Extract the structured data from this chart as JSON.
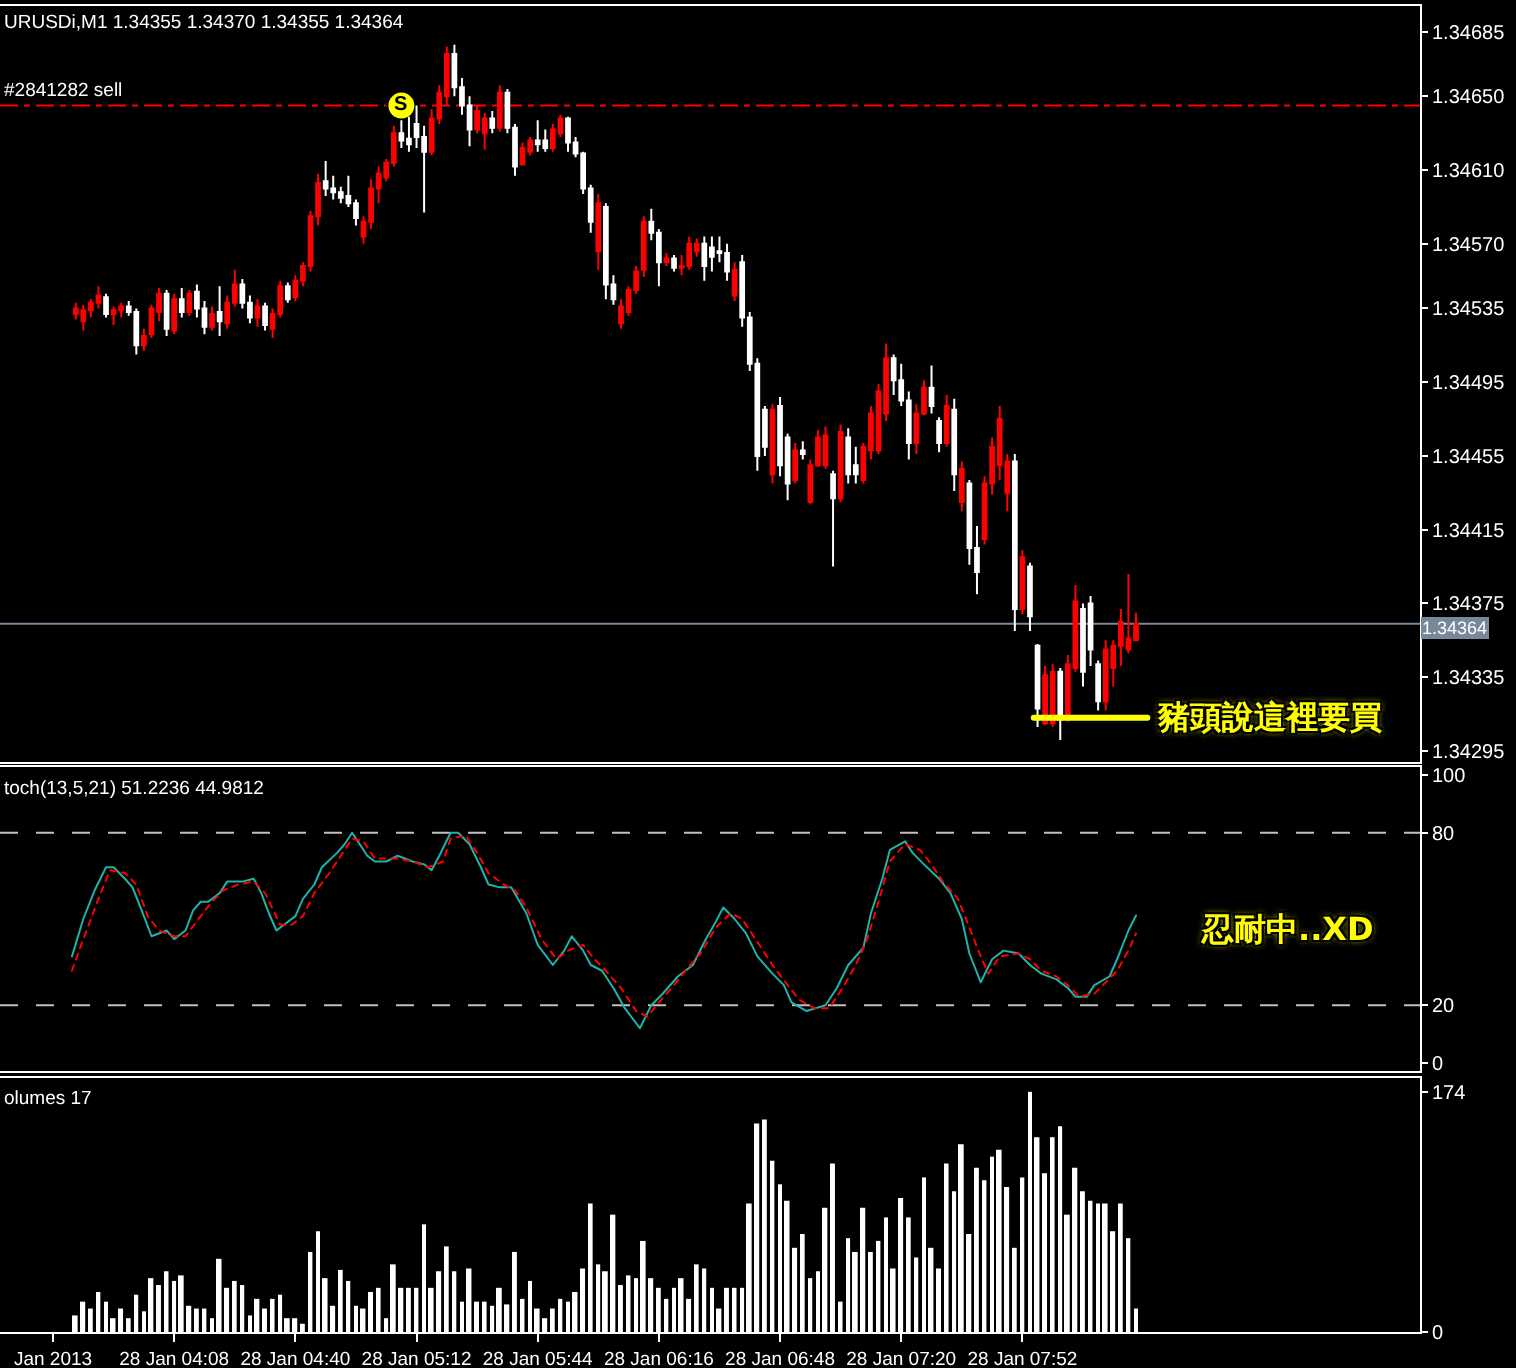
{
  "chart_data": [
    {
      "type": "candlestick",
      "title": "URUSDi,M1 1.34355 1.34370 1.34355 1.34364",
      "x": [
        "2013-01-28T03:42",
        "2013-01-28T03:44",
        "2013-01-28T03:46",
        "2013-01-28T03:48",
        "2013-01-28T03:50",
        "2013-01-28T03:52",
        "2013-01-28T03:54",
        "2013-01-28T03:56",
        "2013-01-28T03:58",
        "2013-01-28T04:00",
        "2013-01-28T04:02",
        "2013-01-28T04:04",
        "2013-01-28T04:06",
        "2013-01-28T04:08",
        "2013-01-28T04:10",
        "2013-01-28T04:12",
        "2013-01-28T04:14",
        "2013-01-28T04:16",
        "2013-01-28T04:18",
        "2013-01-28T04:20",
        "2013-01-28T04:22",
        "2013-01-28T04:24",
        "2013-01-28T04:26",
        "2013-01-28T04:28",
        "2013-01-28T04:30",
        "2013-01-28T04:32",
        "2013-01-28T04:34",
        "2013-01-28T04:36",
        "2013-01-28T04:38",
        "2013-01-28T04:40",
        "2013-01-28T04:42",
        "2013-01-28T04:44",
        "2013-01-28T04:46",
        "2013-01-28T04:48",
        "2013-01-28T04:50",
        "2013-01-28T04:52",
        "2013-01-28T04:54",
        "2013-01-28T04:56",
        "2013-01-28T04:58",
        "2013-01-28T05:00",
        "2013-01-28T05:02",
        "2013-01-28T05:04",
        "2013-01-28T05:06",
        "2013-01-28T05:08",
        "2013-01-28T05:10",
        "2013-01-28T05:12",
        "2013-01-28T05:14",
        "2013-01-28T05:16",
        "2013-01-28T05:18",
        "2013-01-28T05:20",
        "2013-01-28T05:22",
        "2013-01-28T05:24",
        "2013-01-28T05:26",
        "2013-01-28T05:28",
        "2013-01-28T05:30",
        "2013-01-28T05:32",
        "2013-01-28T05:34",
        "2013-01-28T05:36",
        "2013-01-28T05:38",
        "2013-01-28T05:40",
        "2013-01-28T05:42",
        "2013-01-28T05:44",
        "2013-01-28T05:46",
        "2013-01-28T05:48",
        "2013-01-28T05:50",
        "2013-01-28T05:52",
        "2013-01-28T05:54",
        "2013-01-28T05:56",
        "2013-01-28T05:58",
        "2013-01-28T06:00",
        "2013-01-28T06:02",
        "2013-01-28T06:04",
        "2013-01-28T06:06",
        "2013-01-28T06:08",
        "2013-01-28T06:10",
        "2013-01-28T06:12",
        "2013-01-28T06:14",
        "2013-01-28T06:16",
        "2013-01-28T06:18",
        "2013-01-28T06:20",
        "2013-01-28T06:22",
        "2013-01-28T06:24",
        "2013-01-28T06:26",
        "2013-01-28T06:28",
        "2013-01-28T06:30",
        "2013-01-28T06:32",
        "2013-01-28T06:34",
        "2013-01-28T06:36",
        "2013-01-28T06:38",
        "2013-01-28T06:40",
        "2013-01-28T06:42",
        "2013-01-28T06:44",
        "2013-01-28T06:46",
        "2013-01-28T06:48",
        "2013-01-28T06:50",
        "2013-01-28T06:52",
        "2013-01-28T06:54",
        "2013-01-28T06:56",
        "2013-01-28T06:58",
        "2013-01-28T07:00",
        "2013-01-28T07:02",
        "2013-01-28T07:04",
        "2013-01-28T07:06",
        "2013-01-28T07:08",
        "2013-01-28T07:10",
        "2013-01-28T07:12",
        "2013-01-28T07:14",
        "2013-01-28T07:16",
        "2013-01-28T07:18",
        "2013-01-28T07:20",
        "2013-01-28T07:22",
        "2013-01-28T07:24",
        "2013-01-28T07:26",
        "2013-01-28T07:28",
        "2013-01-28T07:30",
        "2013-01-28T07:32",
        "2013-01-28T07:34",
        "2013-01-28T07:36",
        "2013-01-28T07:38",
        "2013-01-28T07:40",
        "2013-01-28T07:42",
        "2013-01-28T07:44",
        "2013-01-28T07:46",
        "2013-01-28T07:48",
        "2013-01-28T07:50",
        "2013-01-28T07:52",
        "2013-01-28T07:54",
        "2013-01-28T07:56",
        "2013-01-28T07:58",
        "2013-01-28T08:00",
        "2013-01-28T08:02",
        "2013-01-28T08:04",
        "2013-01-28T08:06",
        "2013-01-28T08:08",
        "2013-01-28T08:10",
        "2013-01-28T08:12",
        "2013-01-28T08:14",
        "2013-01-28T08:16",
        "2013-01-28T08:18",
        "2013-01-28T08:20",
        "2013-01-28T08:22"
      ],
      "ohlc": [
        [
          1.34532,
          1.34538,
          1.34529,
          1.34535
        ],
        [
          1.34528,
          1.34537,
          1.34523,
          1.34534
        ],
        [
          1.34534,
          1.3454,
          1.3453,
          1.34538
        ],
        [
          1.34538,
          1.34547,
          1.34535,
          1.34542
        ],
        [
          1.34541,
          1.34543,
          1.3453,
          1.34532
        ],
        [
          1.34532,
          1.34536,
          1.34526,
          1.34534
        ],
        [
          1.34534,
          1.34538,
          1.3453,
          1.34536
        ],
        [
          1.34536,
          1.34539,
          1.34531,
          1.34533
        ],
        [
          1.34533,
          1.34535,
          1.3451,
          1.34515
        ],
        [
          1.34515,
          1.34524,
          1.34512,
          1.3452
        ],
        [
          1.34521,
          1.34537,
          1.34519,
          1.34535
        ],
        [
          1.34533,
          1.34546,
          1.34528,
          1.34543
        ],
        [
          1.34543,
          1.34545,
          1.3452,
          1.34524
        ],
        [
          1.34523,
          1.34543,
          1.34521,
          1.3454
        ],
        [
          1.3454,
          1.34546,
          1.3453,
          1.34533
        ],
        [
          1.34533,
          1.34545,
          1.34531,
          1.34543
        ],
        [
          1.34544,
          1.34548,
          1.3453,
          1.34535
        ],
        [
          1.34535,
          1.34539,
          1.34521,
          1.34525
        ],
        [
          1.34525,
          1.34536,
          1.34523,
          1.34532
        ],
        [
          1.34533,
          1.34547,
          1.3452,
          1.34528
        ],
        [
          1.34527,
          1.34542,
          1.34524,
          1.34538
        ],
        [
          1.34538,
          1.34556,
          1.34536,
          1.34548
        ],
        [
          1.34548,
          1.34551,
          1.34535,
          1.34538
        ],
        [
          1.34538,
          1.34542,
          1.34527,
          1.3453
        ],
        [
          1.3453,
          1.3454,
          1.34525,
          1.34536
        ],
        [
          1.34536,
          1.34538,
          1.34523,
          1.34526
        ],
        [
          1.34524,
          1.34535,
          1.34519,
          1.34532
        ],
        [
          1.34532,
          1.3455,
          1.3453,
          1.34547
        ],
        [
          1.34547,
          1.34549,
          1.34538,
          1.3454
        ],
        [
          1.34541,
          1.34553,
          1.34539,
          1.3455
        ],
        [
          1.3455,
          1.3456,
          1.34547,
          1.34558
        ],
        [
          1.34558,
          1.34588,
          1.34555,
          1.34585
        ],
        [
          1.34585,
          1.34608,
          1.3458,
          1.34603
        ],
        [
          1.34604,
          1.34615,
          1.34596,
          1.346
        ],
        [
          1.346,
          1.34607,
          1.34594,
          1.34598
        ],
        [
          1.34598,
          1.34601,
          1.34592,
          1.34595
        ],
        [
          1.34596,
          1.34607,
          1.3459,
          1.34592
        ],
        [
          1.34592,
          1.34594,
          1.3458,
          1.34584
        ],
        [
          1.34574,
          1.34585,
          1.3457,
          1.34582
        ],
        [
          1.34582,
          1.34605,
          1.34578,
          1.346
        ],
        [
          1.346,
          1.34612,
          1.34592,
          1.34608
        ],
        [
          1.34606,
          1.34616,
          1.34604,
          1.34614
        ],
        [
          1.34614,
          1.34634,
          1.34612,
          1.3463
        ],
        [
          1.3463,
          1.34637,
          1.34622,
          1.34626
        ],
        [
          1.34627,
          1.34639,
          1.3462,
          1.34624
        ],
        [
          1.34635,
          1.34645,
          1.34622,
          1.34628
        ],
        [
          1.34628,
          1.34634,
          1.34587,
          1.3462
        ],
        [
          1.3462,
          1.34643,
          1.34618,
          1.34638
        ],
        [
          1.34638,
          1.34656,
          1.34635,
          1.34652
        ],
        [
          1.3465,
          1.34677,
          1.34645,
          1.34673
        ],
        [
          1.34673,
          1.34678,
          1.3465,
          1.34655
        ],
        [
          1.34655,
          1.3466,
          1.3464,
          1.34645
        ],
        [
          1.34645,
          1.3465,
          1.34623,
          1.34632
        ],
        [
          1.34632,
          1.34645,
          1.3463,
          1.34642
        ],
        [
          1.3463,
          1.34641,
          1.34621,
          1.34638
        ],
        [
          1.34638,
          1.34642,
          1.3463,
          1.34633
        ],
        [
          1.34633,
          1.34656,
          1.34631,
          1.34652
        ],
        [
          1.34652,
          1.34654,
          1.3463,
          1.34633
        ],
        [
          1.34633,
          1.34635,
          1.34607,
          1.34612
        ],
        [
          1.34613,
          1.34625,
          1.34613,
          1.34622
        ],
        [
          1.3462,
          1.34628,
          1.34618,
          1.34626
        ],
        [
          1.34626,
          1.34637,
          1.3462,
          1.34624
        ],
        [
          1.34626,
          1.34632,
          1.3462,
          1.34622
        ],
        [
          1.34622,
          1.34635,
          1.3462,
          1.34632
        ],
        [
          1.3463,
          1.3464,
          1.34628,
          1.34638
        ],
        [
          1.34638,
          1.34639,
          1.3462,
          1.34625
        ],
        [
          1.34625,
          1.34628,
          1.34617,
          1.34619
        ],
        [
          1.34619,
          1.3462,
          1.34597,
          1.346
        ],
        [
          1.346,
          1.34602,
          1.34576,
          1.34582
        ],
        [
          1.34566,
          1.34597,
          1.34556,
          1.34592
        ],
        [
          1.3459,
          1.34592,
          1.3454,
          1.34548
        ],
        [
          1.34548,
          1.34553,
          1.34537,
          1.3454
        ],
        [
          1.34527,
          1.3454,
          1.34524,
          1.34536
        ],
        [
          1.34533,
          1.34547,
          1.34531,
          1.34545
        ],
        [
          1.34545,
          1.34558,
          1.34543,
          1.34555
        ],
        [
          1.34556,
          1.34585,
          1.34552,
          1.34582
        ],
        [
          1.34582,
          1.34589,
          1.34572,
          1.34576
        ],
        [
          1.34576,
          1.34578,
          1.34547,
          1.3456
        ],
        [
          1.3456,
          1.34565,
          1.34558,
          1.34562
        ],
        [
          1.34562,
          1.34564,
          1.34555,
          1.34557
        ],
        [
          1.34557,
          1.34564,
          1.34553,
          1.34558
        ],
        [
          1.34558,
          1.34574,
          1.34556,
          1.3457
        ],
        [
          1.34566,
          1.34573,
          1.34563,
          1.3457
        ],
        [
          1.3457,
          1.34574,
          1.3455,
          1.34558
        ],
        [
          1.34568,
          1.34574,
          1.34555,
          1.34563
        ],
        [
          1.34566,
          1.34574,
          1.3456,
          1.34565
        ],
        [
          1.34565,
          1.3457,
          1.3455,
          1.34555
        ],
        [
          1.34542,
          1.3456,
          1.34539,
          1.34556
        ],
        [
          1.3456,
          1.34564,
          1.34525,
          1.3453
        ],
        [
          1.3453,
          1.34533,
          1.34501,
          1.34505
        ],
        [
          1.34505,
          1.34508,
          1.34447,
          1.34455
        ],
        [
          1.3448,
          1.34482,
          1.34455,
          1.3446
        ],
        [
          1.34445,
          1.34483,
          1.3444,
          1.3448
        ],
        [
          1.34482,
          1.34487,
          1.34444,
          1.3445
        ],
        [
          1.34465,
          1.34467,
          1.34431,
          1.3444
        ],
        [
          1.34442,
          1.34462,
          1.3444,
          1.34458
        ],
        [
          1.34458,
          1.34463,
          1.34453,
          1.34456
        ],
        [
          1.3443,
          1.34453,
          1.34429,
          1.3445
        ],
        [
          1.3445,
          1.34469,
          1.34449,
          1.34465
        ],
        [
          1.3445,
          1.34471,
          1.34448,
          1.34466
        ],
        [
          1.34445,
          1.34447,
          1.34395,
          1.34432
        ],
        [
          1.34432,
          1.34472,
          1.3443,
          1.34468
        ],
        [
          1.34465,
          1.3447,
          1.3444,
          1.34445
        ],
        [
          1.3445,
          1.3446,
          1.3444,
          1.34445
        ],
        [
          1.34442,
          1.34462,
          1.3444,
          1.3446
        ],
        [
          1.34458,
          1.34482,
          1.34453,
          1.34478
        ],
        [
          1.34458,
          1.34494,
          1.34456,
          1.3449
        ],
        [
          1.34478,
          1.34516,
          1.34474,
          1.34508
        ],
        [
          1.34508,
          1.3451,
          1.34488,
          1.34496
        ],
        [
          1.34496,
          1.34505,
          1.34482,
          1.34485
        ],
        [
          1.34485,
          1.3449,
          1.34453,
          1.34462
        ],
        [
          1.34462,
          1.34483,
          1.34456,
          1.34478
        ],
        [
          1.34478,
          1.34496,
          1.34477,
          1.34492
        ],
        [
          1.34492,
          1.34504,
          1.34478,
          1.34482
        ],
        [
          1.34474,
          1.34476,
          1.34457,
          1.34462
        ],
        [
          1.34462,
          1.34488,
          1.3446,
          1.34482
        ],
        [
          1.3448,
          1.34486,
          1.34436,
          1.34445
        ],
        [
          1.3443,
          1.34452,
          1.34425,
          1.34448
        ],
        [
          1.3444,
          1.34442,
          1.34396,
          1.34405
        ],
        [
          1.34405,
          1.34417,
          1.3438,
          1.34392
        ],
        [
          1.3441,
          1.34444,
          1.34407,
          1.3444
        ],
        [
          1.3444,
          1.34465,
          1.34434,
          1.3446
        ],
        [
          1.3445,
          1.34482,
          1.34442,
          1.34475
        ],
        [
          1.34435,
          1.34456,
          1.34425,
          1.34452
        ],
        [
          1.34452,
          1.34456,
          1.3436,
          1.34372
        ],
        [
          1.34372,
          1.34404,
          1.34369,
          1.344
        ],
        [
          1.34395,
          1.34397,
          1.3436,
          1.34368
        ],
        [
          1.34352,
          1.34353,
          1.34308,
          1.34318
        ],
        [
          1.3431,
          1.34341,
          1.34309,
          1.34336
        ],
        [
          1.3431,
          1.34342,
          1.34308,
          1.34338
        ],
        [
          1.34338,
          1.3434,
          1.34301,
          1.34312
        ],
        [
          1.34312,
          1.34347,
          1.34311,
          1.34342
        ],
        [
          1.3434,
          1.34385,
          1.34338,
          1.34376
        ],
        [
          1.34372,
          1.34375,
          1.3433,
          1.34338
        ],
        [
          1.34375,
          1.34379,
          1.34341,
          1.3435
        ],
        [
          1.34342,
          1.34344,
          1.34317,
          1.34322
        ],
        [
          1.34322,
          1.34355,
          1.34317,
          1.3435
        ],
        [
          1.3434,
          1.34355,
          1.3433,
          1.34352
        ],
        [
          1.34352,
          1.34372,
          1.34341,
          1.34365
        ],
        [
          1.3435,
          1.34391,
          1.34348,
          1.34356
        ],
        [
          1.34355,
          1.3437,
          1.34355,
          1.34364
        ]
      ],
      "colors": [
        "#ff0000",
        "#ff0000",
        "#ff0000",
        "#ff0000",
        "#ffffff",
        "#ff0000",
        "#ff0000",
        "#ffffff",
        "#ffffff",
        "#ff0000",
        "#ff0000",
        "#ff0000",
        "#ffffff",
        "#ff0000",
        "#ffffff",
        "#ff0000",
        "#ffffff",
        "#ffffff",
        "#ff0000",
        "#ffffff",
        "#ff0000",
        "#ff0000",
        "#ffffff",
        "#ffffff",
        "#ff0000",
        "#ffffff",
        "#ff0000",
        "#ff0000",
        "#ffffff",
        "#ff0000",
        "#ff0000",
        "#ff0000",
        "#ff0000",
        "#ffffff",
        "#ffffff",
        "#ffffff",
        "#ffffff",
        "#ffffff",
        "#ff0000",
        "#ff0000",
        "#ff0000",
        "#ff0000",
        "#ff0000",
        "#ffffff",
        "#ffffff",
        "#ffffff",
        "#ffffff",
        "#ff0000",
        "#ff0000",
        "#ff0000",
        "#ffffff",
        "#ffffff",
        "#ffffff",
        "#ff0000",
        "#ff0000",
        "#ffffff",
        "#ff0000",
        "#ffffff",
        "#ffffff",
        "#ff0000",
        "#ff0000",
        "#ffffff",
        "#ffffff",
        "#ff0000",
        "#ff0000",
        "#ffffff",
        "#ffffff",
        "#ffffff",
        "#ffffff",
        "#ff0000",
        "#ffffff",
        "#ffffff",
        "#ff0000",
        "#ff0000",
        "#ff0000",
        "#ff0000",
        "#ffffff",
        "#ffffff",
        "#ff0000",
        "#ffffff",
        "#ff0000",
        "#ff0000",
        "#ff0000",
        "#ffffff",
        "#ffffff",
        "#ffffff",
        "#ffffff",
        "#ff0000",
        "#ffffff",
        "#ffffff",
        "#ffffff",
        "#ffffff",
        "#ff0000",
        "#ffffff",
        "#ffffff",
        "#ff0000",
        "#ffffff",
        "#ff0000",
        "#ff0000",
        "#ff0000",
        "#ffffff",
        "#ff0000",
        "#ffffff",
        "#ffffff",
        "#ff0000",
        "#ff0000",
        "#ff0000",
        "#ff0000",
        "#ffffff",
        "#ffffff",
        "#ffffff",
        "#ff0000",
        "#ff0000",
        "#ffffff",
        "#ffffff",
        "#ff0000",
        "#ffffff",
        "#ff0000",
        "#ffffff",
        "#ffffff",
        "#ff0000",
        "#ff0000",
        "#ff0000",
        "#ff0000",
        "#ffffff",
        "#ff0000",
        "#ffffff",
        "#ffffff",
        "#ff0000",
        "#ff0000",
        "#ffffff",
        "#ff0000",
        "#ff0000",
        "#ffffff",
        "#ffffff",
        "#ffffff",
        "#ff0000",
        "#ff0000",
        "#ff0000",
        "#ff0000",
        "#ff0000"
      ],
      "series": [
        {
          "type": "line",
          "color": "#ffff00",
          "x": [
            "2013-01-28T07:55",
            "2013-01-28T08:25"
          ],
          "values": [
            1.34313,
            1.34313
          ]
        }
      ],
      "xlim": [
        "2013-01-28T03:22",
        "2013-01-28T09:37"
      ],
      "ylim": [
        1.34289,
        1.34699
      ],
      "yticks": [
        1.34295,
        1.34335,
        1.34375,
        1.34415,
        1.34455,
        1.34495,
        1.34535,
        {
          "value": 1.3457,
          "label": "1.34570"
        },
        {
          "value": 1.3461,
          "label": "1.34610"
        },
        {
          "value": 1.3465,
          "label": "1.34650"
        },
        1.34685
      ],
      "tick_labels": "y",
      "ref_lines": [
        {
          "axis": "y",
          "value": 1.34645,
          "label": "#2841282 sell",
          "color": "#ff0000",
          "line_style": "dashdot"
        },
        {
          "axis": "y",
          "value": 1.34364,
          "label": "1.34364",
          "color": "#778899"
        }
      ],
      "annotations": [
        {
          "text": "S",
          "x": "2013-01-28T05:08",
          "y": 1.34645
        },
        {
          "text": "豬頭說這裡要買",
          "x": "2013-01-28T08:25",
          "y": 1.34313
        }
      ]
    },
    {
      "type": "line",
      "title": "toch(13,5,21) 51.2236 44.9812",
      "series": [
        {
          "color": "#20b2aa",
          "x": [
            "2013-01-28T03:41",
            "2013-01-28T03:44",
            "2013-01-28T03:47",
            "2013-01-28T03:50",
            "2013-01-28T03:52",
            "2013-01-28T03:55",
            "2013-01-28T03:57",
            "2013-01-28T04:00",
            "2013-01-28T04:02",
            "2013-01-28T04:06",
            "2013-01-28T04:08",
            "2013-01-28T04:11",
            "2013-01-28T04:13",
            "2013-01-28T04:15",
            "2013-01-28T04:17",
            "2013-01-28T04:20",
            "2013-01-28T04:22",
            "2013-01-28T04:26",
            "2013-01-28T04:29",
            "2013-01-28T04:31",
            "2013-01-28T04:33",
            "2013-01-28T04:35",
            "2013-01-28T04:37",
            "2013-01-28T04:40",
            "2013-01-28T04:42",
            "2013-01-28T04:45",
            "2013-01-28T04:47",
            "2013-01-28T04:51",
            "2013-01-28T04:53",
            "2013-01-28T04:55",
            "2013-01-28T04:56",
            "2013-01-28T04:59",
            "2013-01-28T05:01",
            "2013-01-28T05:04",
            "2013-01-28T05:07",
            "2013-01-28T05:11",
            "2013-01-28T05:14",
            "2013-01-28T05:16",
            "2013-01-28T05:18",
            "2013-01-28T05:21",
            "2013-01-28T05:23",
            "2013-01-28T05:26",
            "2013-01-28T05:29",
            "2013-01-28T05:31",
            "2013-01-28T05:34",
            "2013-01-28T05:37",
            "2013-01-28T05:41",
            "2013-01-28T05:44",
            "2013-01-28T05:48",
            "2013-01-28T05:51",
            "2013-01-28T05:53",
            "2013-01-28T05:56",
            "2013-01-28T05:58",
            "2013-01-28T06:01",
            "2013-01-28T06:04",
            "2013-01-28T06:07",
            "2013-01-28T06:11",
            "2013-01-28T06:14",
            "2013-01-28T06:17",
            "2013-01-28T06:21",
            "2013-01-28T06:25",
            "2013-01-28T06:28",
            "2013-01-28T06:31",
            "2013-01-28T06:33",
            "2013-01-28T06:36",
            "2013-01-28T06:39",
            "2013-01-28T06:42",
            "2013-01-28T06:46",
            "2013-01-28T06:49",
            "2013-01-28T06:51",
            "2013-01-28T06:55",
            "2013-01-28T07:00",
            "2013-01-28T07:03",
            "2013-01-28T07:06",
            "2013-01-28T07:10",
            "2013-01-28T07:12",
            "2013-01-28T07:15",
            "2013-01-28T07:17",
            "2013-01-28T07:21",
            "2013-01-28T07:23",
            "2013-01-28T07:26",
            "2013-01-28T07:30",
            "2013-01-28T07:33",
            "2013-01-28T07:36",
            "2013-01-28T07:38",
            "2013-01-28T07:41",
            "2013-01-28T07:44",
            "2013-01-28T07:47",
            "2013-01-28T07:51",
            "2013-01-28T07:54",
            "2013-01-28T07:57",
            "2013-01-28T08:01",
            "2013-01-28T08:04",
            "2013-01-28T08:06",
            "2013-01-28T08:09",
            "2013-01-28T08:11",
            "2013-01-28T08:15",
            "2013-01-28T08:17",
            "2013-01-28T08:20",
            "2013-01-28T08:22"
          ],
          "values": [
            37,
            50,
            60,
            68,
            68,
            64,
            61,
            51,
            44,
            46,
            43,
            46,
            53,
            56,
            56,
            59,
            63,
            63,
            64,
            59,
            52,
            46,
            48,
            51,
            57,
            62,
            68,
            73,
            76,
            80,
            78,
            72,
            70,
            70,
            72,
            70,
            69,
            67,
            72,
            80,
            80,
            76,
            68,
            62,
            61,
            61,
            52,
            41,
            34,
            39,
            44,
            39,
            34,
            32,
            26,
            19,
            12,
            20,
            24,
            30,
            34,
            42,
            49,
            54,
            50,
            45,
            37,
            31,
            27,
            21,
            18,
            20,
            26,
            34,
            40,
            52,
            64,
            74,
            77,
            73,
            69,
            64,
            59,
            50,
            38,
            28,
            36,
            39,
            38,
            34,
            31,
            29,
            26,
            23,
            23,
            27,
            30,
            36,
            46,
            51.2236
          ]
        },
        {
          "color": "#ff0000",
          "line_style": "dotted",
          "x": [
            "2013-01-28T03:41",
            "2013-01-28T03:44",
            "2013-01-28T03:48",
            "2013-01-28T03:51",
            "2013-01-28T03:55",
            "2013-01-28T03:58",
            "2013-01-28T04:01",
            "2013-01-28T04:04",
            "2013-01-28T04:08",
            "2013-01-28T04:11",
            "2013-01-28T04:15",
            "2013-01-28T04:18",
            "2013-01-28T04:21",
            "2013-01-28T04:25",
            "2013-01-28T04:29",
            "2013-01-28T04:32",
            "2013-01-28T04:36",
            "2013-01-28T04:39",
            "2013-01-28T04:42",
            "2013-01-28T04:45",
            "2013-01-28T04:49",
            "2013-01-28T04:52",
            "2013-01-28T04:55",
            "2013-01-28T04:58",
            "2013-01-28T05:01",
            "2013-01-28T05:04",
            "2013-01-28T05:07",
            "2013-01-28T05:11",
            "2013-01-28T05:15",
            "2013-01-28T05:19",
            "2013-01-28T05:21",
            "2013-01-28T05:25",
            "2013-01-28T05:28",
            "2013-01-28T05:31",
            "2013-01-28T05:35",
            "2013-01-28T05:38",
            "2013-01-28T05:41",
            "2013-01-28T05:45",
            "2013-01-28T05:49",
            "2013-01-28T05:52",
            "2013-01-28T05:56",
            "2013-01-28T05:59",
            "2013-01-28T06:02",
            "2013-01-28T06:06",
            "2013-01-28T06:10",
            "2013-01-28T06:13",
            "2013-01-28T06:16",
            "2013-01-28T06:20",
            "2013-01-28T06:23",
            "2013-01-28T06:27",
            "2013-01-28T06:31",
            "2013-01-28T06:35",
            "2013-01-28T06:38",
            "2013-01-28T06:42",
            "2013-01-28T06:46",
            "2013-01-28T06:50",
            "2013-01-28T06:53",
            "2013-01-28T06:57",
            "2013-01-28T07:01",
            "2013-01-28T07:05",
            "2013-01-28T07:08",
            "2013-01-28T07:11",
            "2013-01-28T07:14",
            "2013-01-28T07:17",
            "2013-01-28T07:21",
            "2013-01-28T07:25",
            "2013-01-28T07:28",
            "2013-01-28T07:31",
            "2013-01-28T07:35",
            "2013-01-28T07:38",
            "2013-01-28T07:41",
            "2013-01-28T07:43",
            "2013-01-28T07:46",
            "2013-01-28T07:51",
            "2013-01-28T07:54",
            "2013-01-28T07:57",
            "2013-01-28T08:01",
            "2013-01-28T08:04",
            "2013-01-28T08:07",
            "2013-01-28T08:11",
            "2013-01-28T08:14",
            "2013-01-28T08:17",
            "2013-01-28T08:20",
            "2013-01-28T08:22"
          ],
          "values": [
            32,
            43,
            57,
            67,
            66,
            62,
            51,
            46,
            44,
            44,
            51,
            56,
            60,
            62,
            63,
            59,
            48,
            48,
            51,
            59,
            66,
            72,
            78,
            77,
            71,
            71,
            71,
            70,
            68,
            70,
            78,
            79,
            73,
            66,
            62,
            60,
            54,
            43,
            36,
            39,
            41,
            36,
            32,
            26,
            18,
            16,
            21,
            27,
            32,
            38,
            47,
            52,
            50,
            42,
            34,
            27,
            22,
            19,
            19,
            27,
            34,
            43,
            56,
            70,
            76,
            74,
            69,
            63,
            57,
            47,
            37,
            31,
            37,
            38,
            36,
            32,
            30,
            27,
            23,
            24,
            28,
            32,
            39,
            44.9812
          ]
        }
      ],
      "xlim": [
        "2013-01-28T03:22",
        "2013-01-28T09:37"
      ],
      "ylim": [
        -3,
        103
      ],
      "yticks": [
        0,
        20,
        80,
        100
      ],
      "tick_labels": "y",
      "ref_lines": [
        {
          "axis": "y",
          "value": 80,
          "color": "#c0c0c0",
          "line_style": "dashed"
        },
        {
          "axis": "y",
          "value": 20,
          "color": "#c0c0c0",
          "line_style": "dashed"
        }
      ],
      "annotations": [
        "忍耐中..XD"
      ]
    },
    {
      "type": "bar",
      "title": "olumes 17",
      "x": [
        "2013-01-28T03:42",
        "2013-01-28T03:44",
        "2013-01-28T03:46",
        "2013-01-28T03:48",
        "2013-01-28T03:50",
        "2013-01-28T03:52",
        "2013-01-28T03:54",
        "2013-01-28T03:56",
        "2013-01-28T03:58",
        "2013-01-28T04:00",
        "2013-01-28T04:02",
        "2013-01-28T04:04",
        "2013-01-28T04:06",
        "2013-01-28T04:08",
        "2013-01-28T04:10",
        "2013-01-28T04:12",
        "2013-01-28T04:14",
        "2013-01-28T04:16",
        "2013-01-28T04:18",
        "2013-01-28T04:20",
        "2013-01-28T04:22",
        "2013-01-28T04:24",
        "2013-01-28T04:26",
        "2013-01-28T04:28",
        "2013-01-28T04:30",
        "2013-01-28T04:32",
        "2013-01-28T04:34",
        "2013-01-28T04:36",
        "2013-01-28T04:38",
        "2013-01-28T04:40",
        "2013-01-28T04:42",
        "2013-01-28T04:44",
        "2013-01-28T04:46",
        "2013-01-28T04:48",
        "2013-01-28T04:50",
        "2013-01-28T04:52",
        "2013-01-28T04:54",
        "2013-01-28T04:56",
        "2013-01-28T04:58",
        "2013-01-28T05:00",
        "2013-01-28T05:02",
        "2013-01-28T05:04",
        "2013-01-28T05:06",
        "2013-01-28T05:08",
        "2013-01-28T05:10",
        "2013-01-28T05:12",
        "2013-01-28T05:14",
        "2013-01-28T05:16",
        "2013-01-28T05:18",
        "2013-01-28T05:20",
        "2013-01-28T05:22",
        "2013-01-28T05:24",
        "2013-01-28T05:26",
        "2013-01-28T05:28",
        "2013-01-28T05:30",
        "2013-01-28T05:32",
        "2013-01-28T05:34",
        "2013-01-28T05:36",
        "2013-01-28T05:38",
        "2013-01-28T05:40",
        "2013-01-28T05:42",
        "2013-01-28T05:44",
        "2013-01-28T05:46",
        "2013-01-28T05:48",
        "2013-01-28T05:50",
        "2013-01-28T05:52",
        "2013-01-28T05:54",
        "2013-01-28T05:56",
        "2013-01-28T05:58",
        "2013-01-28T06:00",
        "2013-01-28T06:02",
        "2013-01-28T06:04",
        "2013-01-28T06:06",
        "2013-01-28T06:08",
        "2013-01-28T06:10",
        "2013-01-28T06:12",
        "2013-01-28T06:14",
        "2013-01-28T06:16",
        "2013-01-28T06:18",
        "2013-01-28T06:20",
        "2013-01-28T06:22",
        "2013-01-28T06:24",
        "2013-01-28T06:26",
        "2013-01-28T06:28",
        "2013-01-28T06:30",
        "2013-01-28T06:32",
        "2013-01-28T06:34",
        "2013-01-28T06:36",
        "2013-01-28T06:38",
        "2013-01-28T06:40",
        "2013-01-28T06:42",
        "2013-01-28T06:44",
        "2013-01-28T06:46",
        "2013-01-28T06:48",
        "2013-01-28T06:50",
        "2013-01-28T06:52",
        "2013-01-28T06:54",
        "2013-01-28T06:56",
        "2013-01-28T06:58",
        "2013-01-28T07:00",
        "2013-01-28T07:02",
        "2013-01-28T07:04",
        "2013-01-28T07:06",
        "2013-01-28T07:08",
        "2013-01-28T07:10",
        "2013-01-28T07:12",
        "2013-01-28T07:14",
        "2013-01-28T07:16",
        "2013-01-28T07:18",
        "2013-01-28T07:20",
        "2013-01-28T07:22",
        "2013-01-28T07:24",
        "2013-01-28T07:26",
        "2013-01-28T07:28",
        "2013-01-28T07:30",
        "2013-01-28T07:32",
        "2013-01-28T07:34",
        "2013-01-28T07:36",
        "2013-01-28T07:38",
        "2013-01-28T07:40",
        "2013-01-28T07:42",
        "2013-01-28T07:44",
        "2013-01-28T07:46",
        "2013-01-28T07:48",
        "2013-01-28T07:50",
        "2013-01-28T07:52",
        "2013-01-28T07:54",
        "2013-01-28T07:56",
        "2013-01-28T07:58",
        "2013-01-28T08:00",
        "2013-01-28T08:02",
        "2013-01-28T08:04",
        "2013-01-28T08:06",
        "2013-01-28T08:08",
        "2013-01-28T08:10",
        "2013-01-28T08:12",
        "2013-01-28T08:14",
        "2013-01-28T08:16",
        "2013-01-28T08:18",
        "2013-01-28T08:20",
        "2013-01-28T08:22"
      ],
      "values": [
        12,
        22,
        17,
        29,
        22,
        10,
        17,
        10,
        27,
        15,
        39,
        34,
        44,
        37,
        41,
        19,
        17,
        17,
        10,
        53,
        32,
        37,
        34,
        12,
        24,
        17,
        24,
        27,
        10,
        10,
        6,
        58,
        73,
        39,
        19,
        45,
        37,
        19,
        17,
        29,
        32,
        10,
        49,
        32,
        32,
        32,
        78,
        32,
        44,
        62,
        44,
        22,
        46,
        22,
        22,
        19,
        32,
        20,
        58,
        24,
        37,
        17,
        10,
        17,
        24,
        22,
        29,
        46,
        93,
        49,
        44,
        85,
        34,
        41,
        39,
        66,
        39,
        32,
        24,
        32,
        39,
        24,
        49,
        46,
        32,
        17,
        32,
        32,
        32,
        93,
        151,
        154,
        124,
        107,
        95,
        61,
        71,
        39,
        44,
        90,
        122,
        22,
        68,
        58,
        90,
        58,
        66,
        83,
        46,
        97,
        83,
        54,
        112,
        61,
        46,
        122,
        102,
        136,
        71,
        119,
        110,
        127,
        132,
        105,
        61,
        112,
        174,
        141,
        115,
        141,
        149,
        85,
        119,
        102,
        95,
        93,
        93,
        73,
        93,
        68,
        17
      ],
      "color": "#ffffff",
      "xlim": [
        "2013-01-28T03:22",
        "2013-01-28T09:37"
      ],
      "xticks": [
        {
          "value": "2013-01-28T03:36",
          "label": "Jan 2013"
        },
        {
          "value": "2013-01-28T04:08",
          "label": "28 Jan 04:08"
        },
        {
          "value": "2013-01-28T04:40",
          "label": "28 Jan 04:40"
        },
        {
          "value": "2013-01-28T05:12",
          "label": "28 Jan 05:12"
        },
        {
          "value": "2013-01-28T05:44",
          "label": "28 Jan 05:44"
        },
        {
          "value": "2013-01-28T06:16",
          "label": "28 Jan 06:16"
        },
        {
          "value": "2013-01-28T06:48",
          "label": "28 Jan 06:48"
        },
        {
          "value": "2013-01-28T07:20",
          "label": "28 Jan 07:20"
        },
        {
          "value": "2013-01-28T07:52",
          "label": "28 Jan 07:52"
        }
      ],
      "ylim": [
        0,
        184
      ],
      "yticks": [
        0,
        174
      ]
    }
  ]
}
